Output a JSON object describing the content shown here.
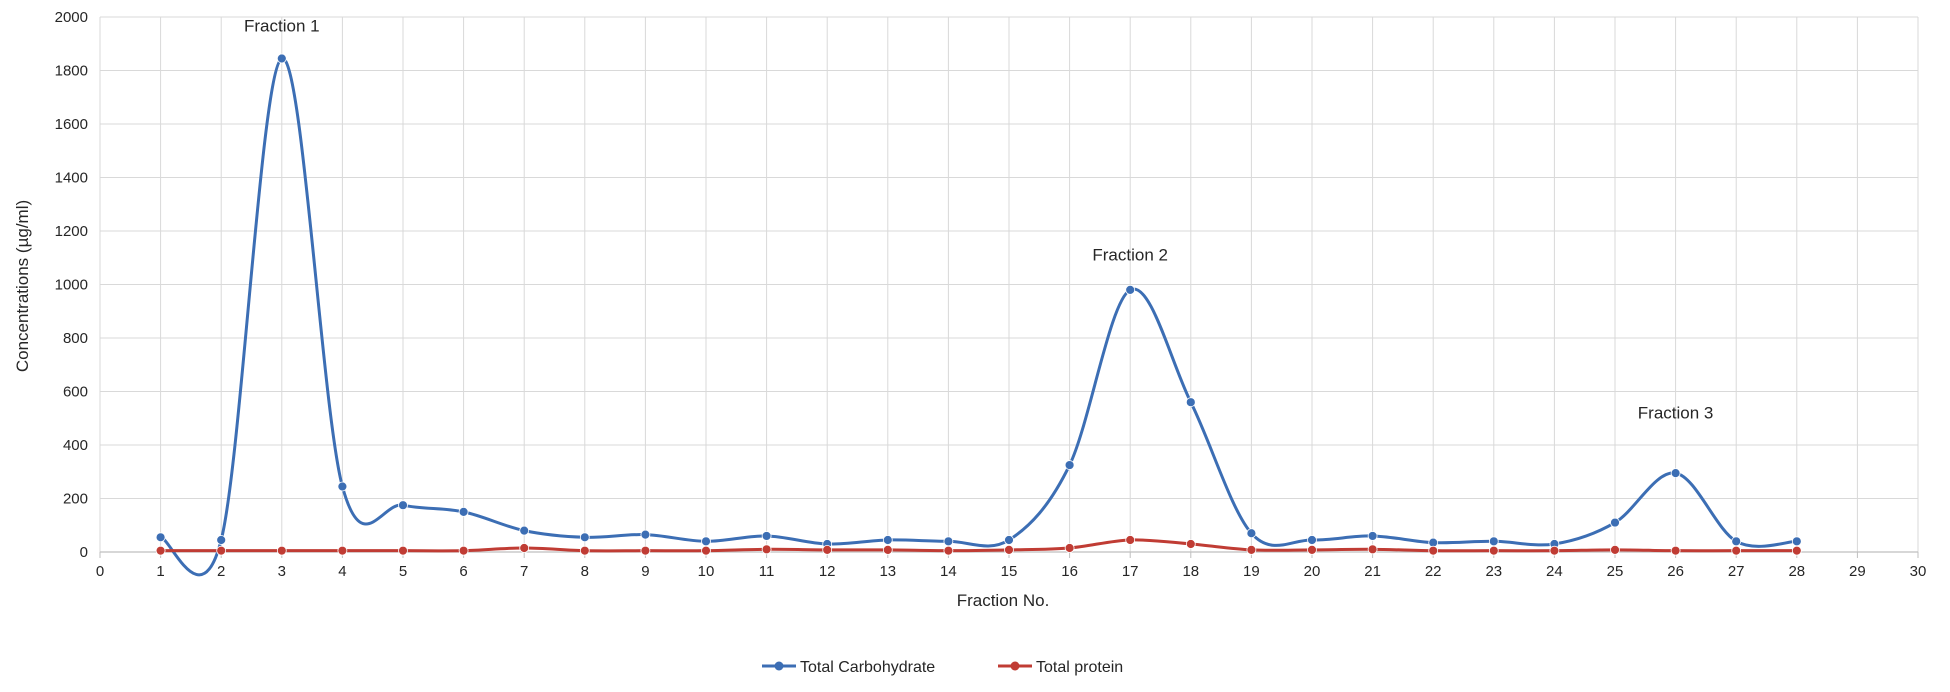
{
  "chart_data": {
    "type": "line",
    "xlabel": "Fraction No.",
    "ylabel": "Concentrations (µg/ml)",
    "xlim": [
      0,
      30
    ],
    "ylim": [
      0,
      2000
    ],
    "x_ticks": [
      "0",
      "1",
      "2",
      "3",
      "4",
      "5",
      "6",
      "7",
      "8",
      "9",
      "10",
      "11",
      "12",
      "13",
      "14",
      "15",
      "16",
      "17",
      "18",
      "19",
      "20",
      "21",
      "22",
      "23",
      "24",
      "25",
      "26",
      "27",
      "28",
      "29",
      "30"
    ],
    "y_ticks": [
      "0",
      "200",
      "400",
      "600",
      "800",
      "1000",
      "1200",
      "1400",
      "1600",
      "1800",
      "2000"
    ],
    "grid": true,
    "smooth": true,
    "legend_position": "bottom",
    "x": [
      1,
      2,
      3,
      4,
      5,
      6,
      7,
      8,
      9,
      10,
      11,
      12,
      13,
      14,
      15,
      16,
      17,
      18,
      19,
      20,
      21,
      22,
      23,
      24,
      25,
      26,
      27,
      28
    ],
    "series": [
      {
        "name": "Total Carbohydrate",
        "color": "#3c6eb4",
        "values": [
          55,
          45,
          1845,
          245,
          175,
          150,
          80,
          55,
          65,
          40,
          60,
          30,
          45,
          40,
          45,
          325,
          980,
          560,
          70,
          45,
          60,
          35,
          40,
          30,
          110,
          295,
          40,
          40
        ]
      },
      {
        "name": "Total protein",
        "color": "#c03c34",
        "values": [
          5,
          5,
          5,
          5,
          5,
          5,
          15,
          5,
          5,
          5,
          10,
          8,
          8,
          5,
          8,
          15,
          45,
          30,
          8,
          8,
          10,
          5,
          5,
          5,
          8,
          5,
          5,
          5
        ]
      }
    ],
    "annotations": [
      {
        "text": "Fraction 1",
        "x": 3,
        "y": 1945
      },
      {
        "text": "Fraction 2",
        "x": 17,
        "y": 1090
      },
      {
        "text": "Fraction 3",
        "x": 26,
        "y": 500
      }
    ]
  }
}
